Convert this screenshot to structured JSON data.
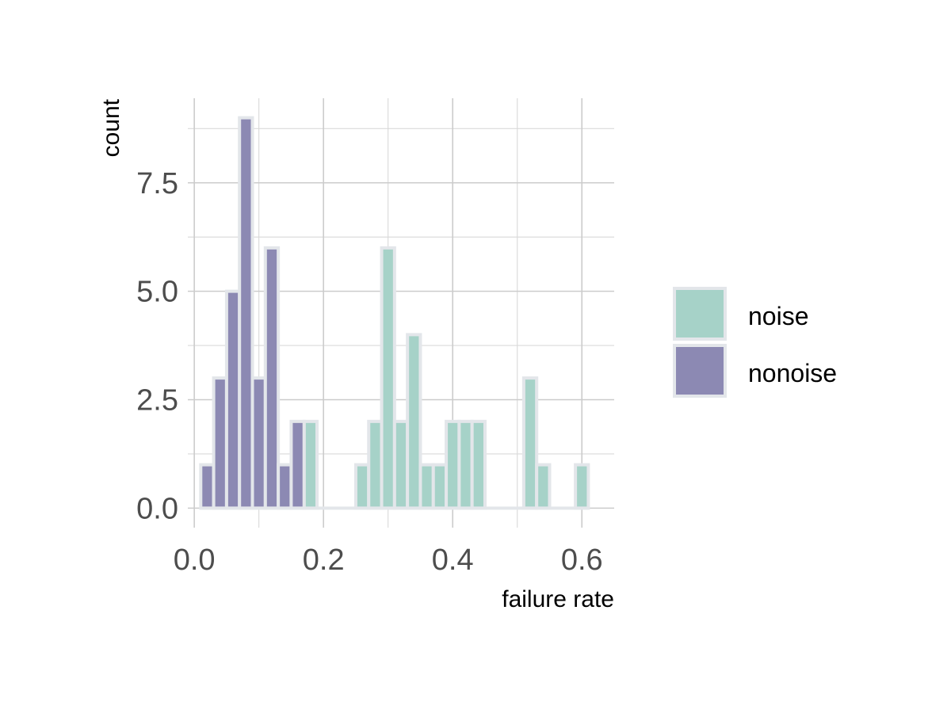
{
  "chart_data": {
    "type": "bar",
    "subtype": "histogram",
    "title": "",
    "xlabel": "failure rate",
    "ylabel": "count",
    "xlim": [
      -0.01,
      0.65
    ],
    "ylim": [
      -0.45,
      9.45
    ],
    "x_ticks": [
      0.0,
      0.2,
      0.4,
      0.6
    ],
    "x_tick_labels": [
      "0.0",
      "0.2",
      "0.4",
      "0.6"
    ],
    "x_minor_ticks": [
      0.1,
      0.3,
      0.5
    ],
    "y_ticks": [
      0,
      2.5,
      5,
      7.5
    ],
    "y_tick_labels": [
      "0.0",
      "2.5",
      "5.0",
      "7.5"
    ],
    "y_minor_ticks": [
      1.25,
      3.75,
      6.25,
      8.75
    ],
    "grid": true,
    "bin_width": 0.02,
    "legend_position": "right",
    "series": [
      {
        "name": "noise",
        "color": "#a6d2c8",
        "bin_centers": [
          0.18,
          0.26,
          0.28,
          0.3,
          0.32,
          0.34,
          0.36,
          0.38,
          0.4,
          0.42,
          0.44,
          0.52,
          0.54,
          0.6
        ],
        "values": [
          2,
          1,
          2,
          6,
          2,
          4,
          1,
          1,
          2,
          2,
          2,
          3,
          1,
          1
        ]
      },
      {
        "name": "nonoise",
        "color": "#8c89b3",
        "bin_centers": [
          0.02,
          0.04,
          0.06,
          0.08,
          0.1,
          0.12,
          0.14,
          0.16
        ],
        "values": [
          1,
          3,
          5,
          9,
          3,
          6,
          1,
          2
        ]
      }
    ]
  }
}
